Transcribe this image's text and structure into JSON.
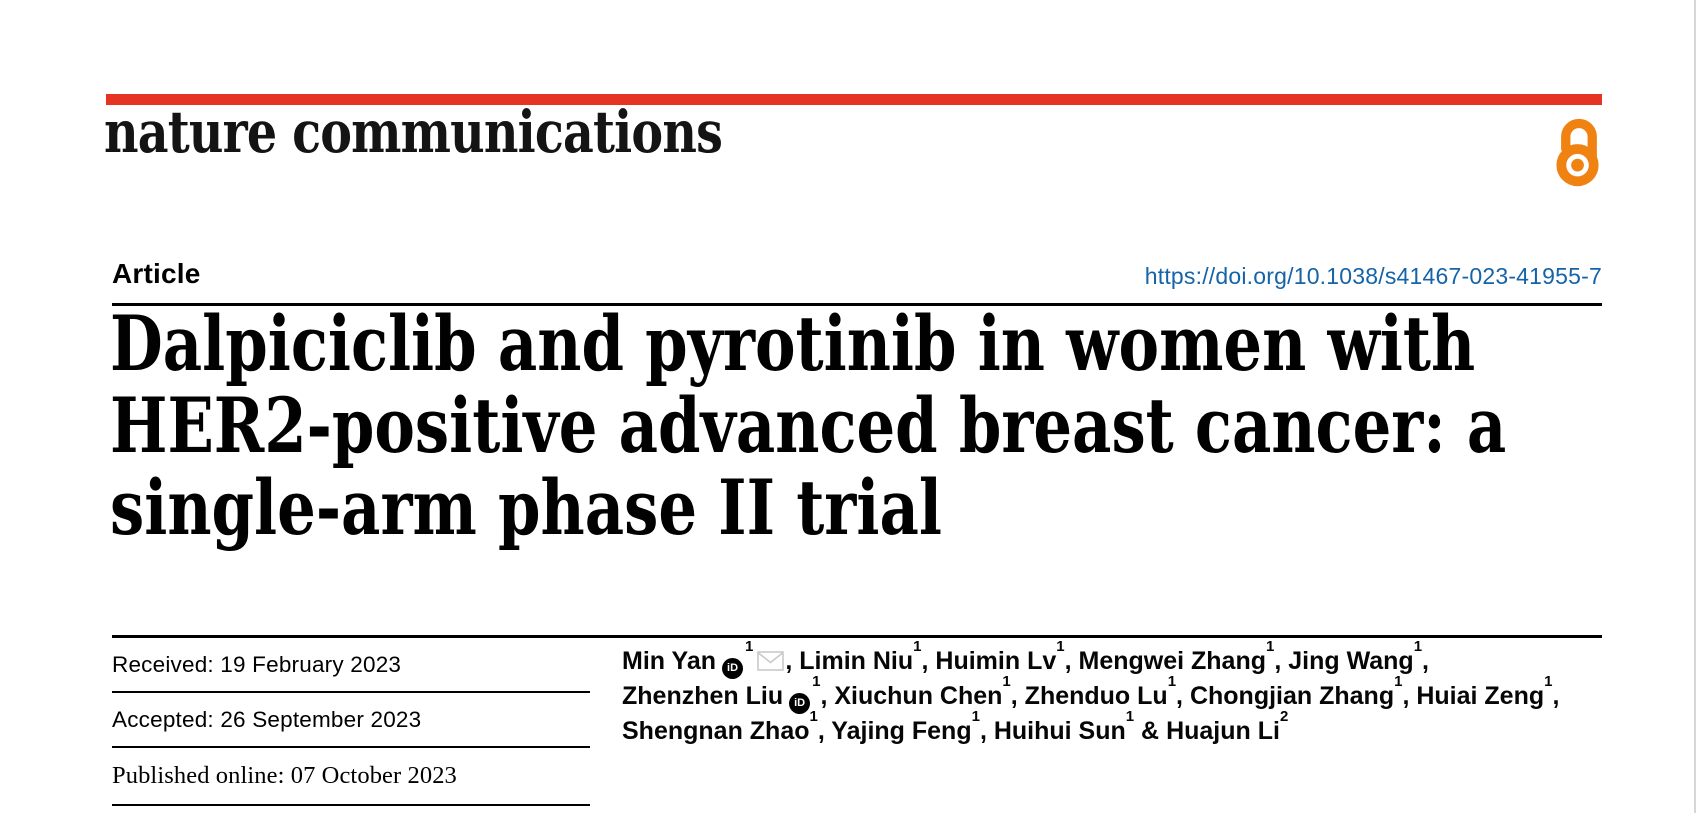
{
  "masthead": {
    "logo": "nature communications"
  },
  "article": {
    "kicker": "Article",
    "doi": "https://doi.org/10.1038/s41467-023-41955-7",
    "title": "Dalpiciclib and pyrotinib in women with HER2-positive advanced breast cancer: a single-arm phase II trial",
    "title_lines": [
      "Dalpiciclib and pyrotinib in women with",
      "HER2-positive advanced breast cancer: a",
      "single-arm phase II trial"
    ]
  },
  "dates": {
    "rows": [
      {
        "text": "Received: 19 February 2023"
      },
      {
        "text": "Accepted: 26 September 2023"
      },
      {
        "text": "Published online: 07 October 2023"
      }
    ]
  },
  "authors": {
    "separator": ", ",
    "last_separator": " & ",
    "orcid_glyph": "iD",
    "list": [
      {
        "name": "Min Yan",
        "orcid": true,
        "sup": "1",
        "envelope": true
      },
      {
        "name": "Limin Niu",
        "sup": "1"
      },
      {
        "name": "Huimin Lv",
        "sup": "1"
      },
      {
        "name": "Mengwei Zhang",
        "sup": "1"
      },
      {
        "name": "Jing Wang",
        "sup": "1"
      },
      {
        "name": "Zhenzhen Liu",
        "orcid": true,
        "sup": "1"
      },
      {
        "name": "Xiuchun Chen",
        "sup": "1"
      },
      {
        "name": "Zhenduo Lu",
        "sup": "1"
      },
      {
        "name": "Chongjian Zhang",
        "sup": "1"
      },
      {
        "name": "Huiai Zeng",
        "sup": "1"
      },
      {
        "name": "Shengnan Zhao",
        "sup": "1"
      },
      {
        "name": "Yajing Feng",
        "sup": "1"
      },
      {
        "name": "Huihui Sun",
        "sup": "1"
      },
      {
        "name": "Huajun Li",
        "sup": "2"
      }
    ]
  },
  "colors": {
    "brand_red": "#e63323",
    "link_blue": "#1563a8",
    "open_access_orange": "#f08212",
    "text_black": "#000000"
  }
}
